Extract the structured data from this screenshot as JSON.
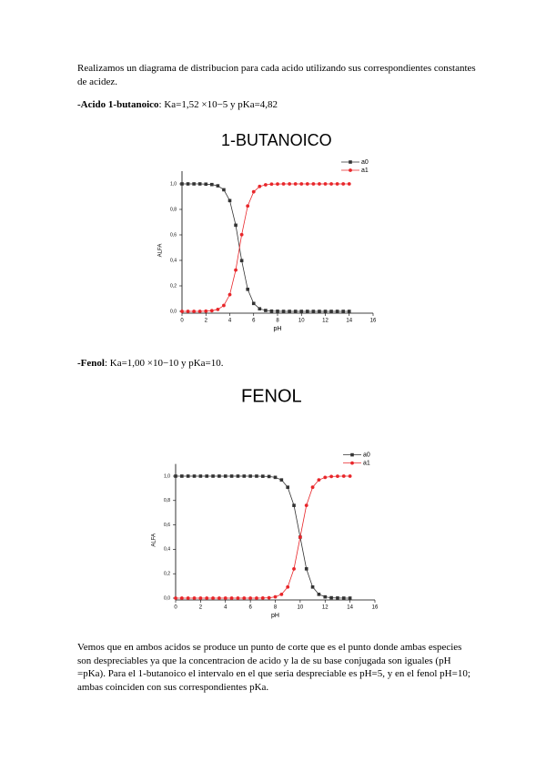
{
  "document": {
    "intro": "Realizamos un diagrama de distribucion para cada acido utilizando sus correspondientes constantes de acidez.",
    "acids": [
      {
        "name": "-Acido 1-butanoico",
        "constants": ": Ka=1,52 ×10−5 y pKa=4,82"
      },
      {
        "name": "-Fenol",
        "constants": ": Ka=1,00 ×10−10 y pKa=10."
      }
    ],
    "conclusion": "Vemos que en ambos acidos se produce un punto de corte que es el punto donde ambas especies son despreciables ya que la concentracion de acido y la de su base conjugada son iguales (pH =pKa). Para el 1-butanoico el intervalo en el que seria despreciable es pH=5, y en el fenol pH=10; ambas coinciden con sus correspondientes pKa."
  },
  "chart_data": [
    {
      "type": "line",
      "title": "1-BUTANOICO",
      "x_label": "pH",
      "y_label": "ALFA",
      "x": [
        0,
        0.5,
        1,
        1.5,
        2,
        2.5,
        3,
        3.5,
        4,
        4.5,
        5,
        5.5,
        6,
        6.5,
        7,
        7.5,
        8,
        8.5,
        9,
        9.5,
        10,
        10.5,
        11,
        11.5,
        12,
        12.5,
        13,
        13.5,
        14
      ],
      "series": [
        {
          "name": "a0",
          "color": "#333333",
          "marker": "square",
          "values": [
            1.0,
            1.0,
            1.0,
            1.0,
            0.998,
            0.995,
            0.985,
            0.954,
            0.869,
            0.676,
            0.398,
            0.173,
            0.062,
            0.02,
            0.007,
            0.002,
            0.001,
            0.0,
            0.0,
            0.0,
            0.0,
            0.0,
            0.0,
            0.0,
            0.0,
            0.0,
            0.0,
            0.0,
            0.0
          ]
        },
        {
          "name": "a1",
          "color": "#e8262a",
          "marker": "circle",
          "values": [
            0.0,
            0.0,
            0.0,
            0.0,
            0.002,
            0.005,
            0.015,
            0.046,
            0.131,
            0.324,
            0.602,
            0.827,
            0.938,
            0.98,
            0.993,
            0.998,
            0.999,
            1.0,
            1.0,
            1.0,
            1.0,
            1.0,
            1.0,
            1.0,
            1.0,
            1.0,
            1.0,
            1.0,
            1.0
          ]
        }
      ],
      "xlim": [
        0,
        16
      ],
      "xticks": [
        0,
        2,
        4,
        6,
        8,
        10,
        12,
        14,
        16
      ],
      "ylim": [
        0,
        1.1
      ],
      "yticks": [
        {
          "value": 0,
          "label": "0,0"
        },
        {
          "value": 0.2,
          "label": "0,2"
        },
        {
          "value": 0.4,
          "label": "0,4"
        },
        {
          "value": 0.6,
          "label": "0,6"
        },
        {
          "value": 0.8,
          "label": "0,8"
        },
        {
          "value": 1,
          "label": "1,0"
        }
      ],
      "legend": "upper right"
    },
    {
      "type": "line",
      "title": "FENOL",
      "x_label": "pH",
      "y_label": "ALFA",
      "x": [
        0,
        0.5,
        1,
        1.5,
        2,
        2.5,
        3,
        3.5,
        4,
        4.5,
        5,
        5.5,
        6,
        6.5,
        7,
        7.5,
        8,
        8.5,
        9,
        9.5,
        10,
        10.5,
        11,
        11.5,
        12,
        12.5,
        13,
        13.5,
        14
      ],
      "series": [
        {
          "name": "a0",
          "color": "#333333",
          "marker": "square",
          "values": [
            1.0,
            1.0,
            1.0,
            1.0,
            1.0,
            1.0,
            1.0,
            1.0,
            1.0,
            1.0,
            1.0,
            1.0,
            1.0,
            1.0,
            0.999,
            0.997,
            0.99,
            0.969,
            0.909,
            0.76,
            0.5,
            0.24,
            0.091,
            0.031,
            0.01,
            0.003,
            0.001,
            0.0,
            0.0
          ]
        },
        {
          "name": "a1",
          "color": "#e8262a",
          "marker": "circle",
          "values": [
            0.0,
            0.0,
            0.0,
            0.0,
            0.0,
            0.0,
            0.0,
            0.0,
            0.0,
            0.0,
            0.0,
            0.0,
            0.0,
            0.0,
            0.001,
            0.003,
            0.01,
            0.031,
            0.091,
            0.24,
            0.5,
            0.76,
            0.909,
            0.969,
            0.99,
            0.997,
            0.999,
            1.0,
            1.0
          ]
        }
      ],
      "xlim": [
        0,
        16
      ],
      "xticks": [
        0,
        2,
        4,
        6,
        8,
        10,
        12,
        14,
        16
      ],
      "ylim": [
        0,
        1.1
      ],
      "yticks": [
        {
          "value": 0,
          "label": "0,0"
        },
        {
          "value": 0.2,
          "label": "0,2"
        },
        {
          "value": 0.4,
          "label": "0,4"
        },
        {
          "value": 0.6,
          "label": "0,6"
        },
        {
          "value": 0.8,
          "label": "0,8"
        },
        {
          "value": 1,
          "label": "1,0"
        }
      ],
      "legend": "upper right"
    }
  ]
}
